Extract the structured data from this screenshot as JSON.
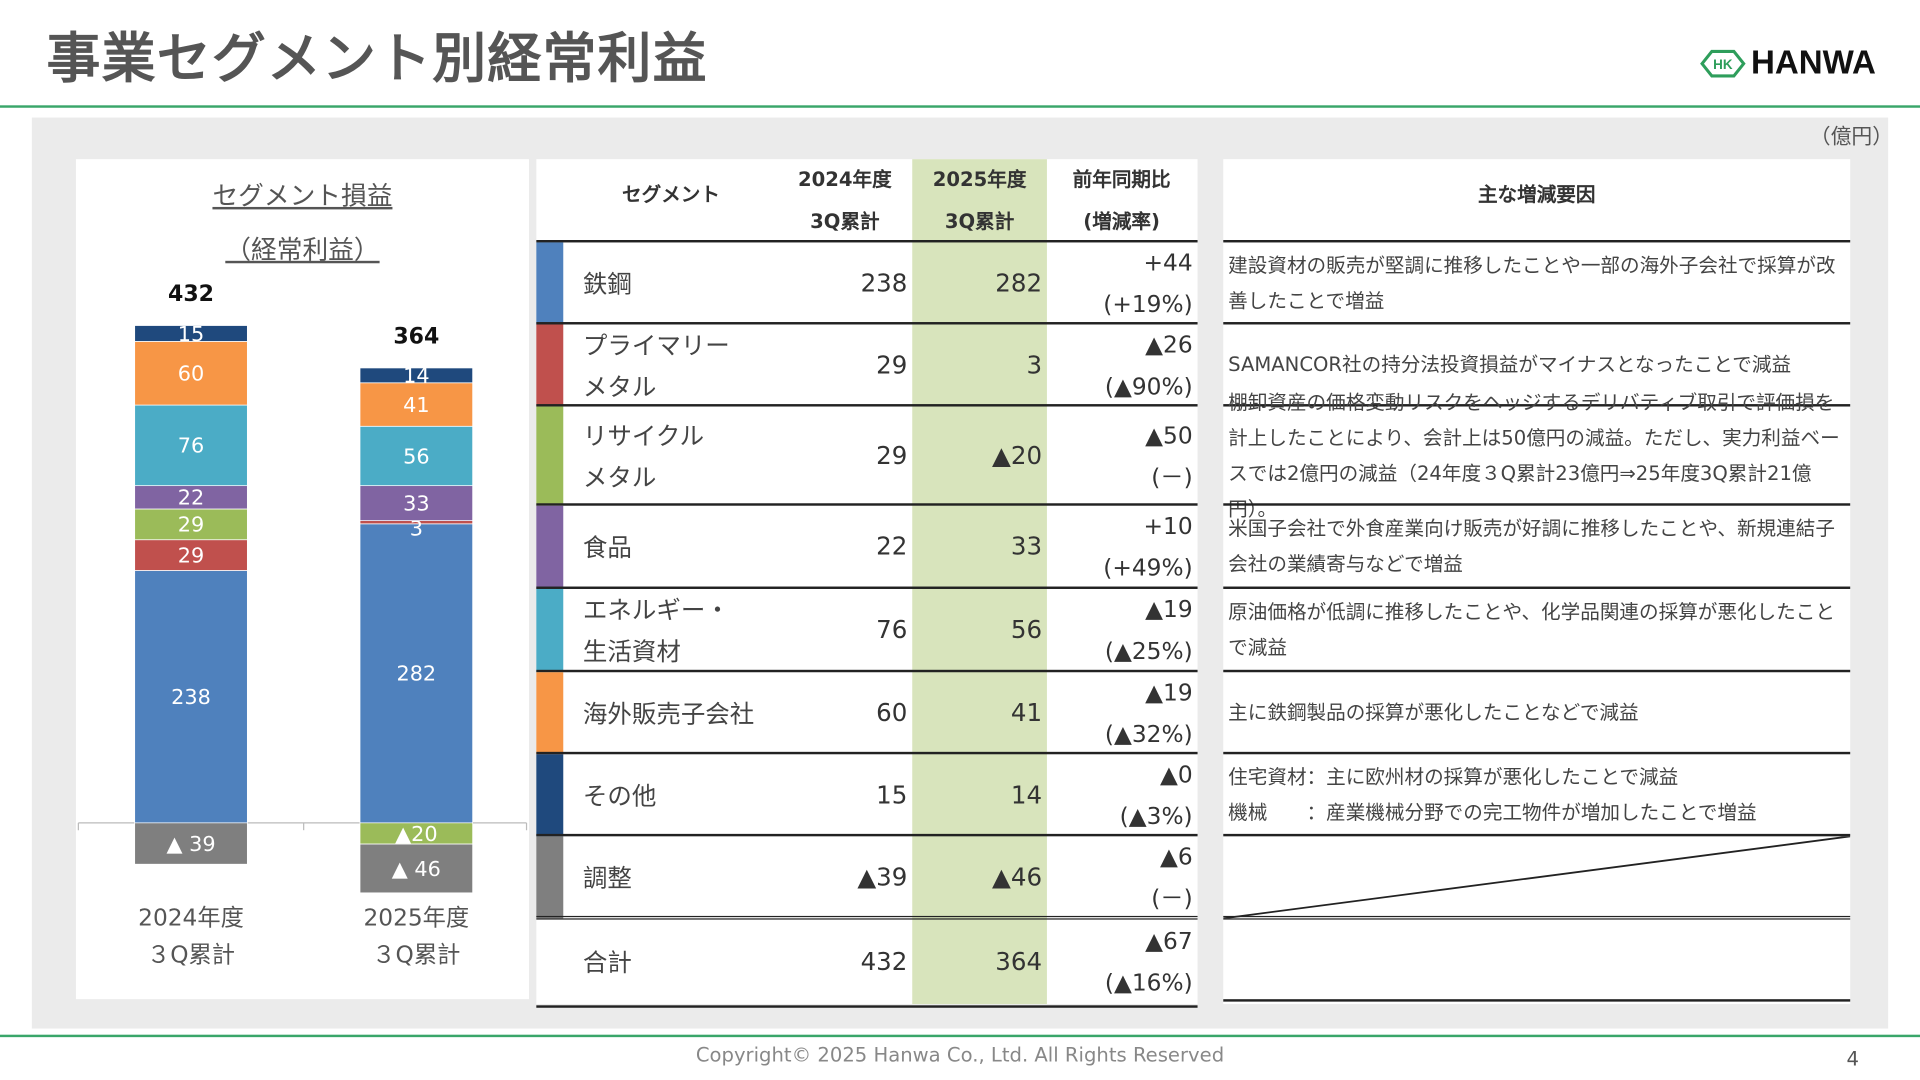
{
  "title": "事業セグメント別経常利益",
  "logo": {
    "mark": "HK",
    "name": "HANWA",
    "color": "#2e9e5b"
  },
  "unit": "（億円）",
  "chart_data": {
    "type": "bar",
    "stacked": true,
    "title": "セグメント損益",
    "subtitle": "（経常利益）",
    "categories": [
      "2024年度\n3Q累計",
      "2025年度\n3Q累計"
    ],
    "category_lines": [
      [
        "2024年度",
        "３Q累計"
      ],
      [
        "2025年度",
        "３Q累計"
      ]
    ],
    "totals": [
      432,
      364
    ],
    "total_labels": [
      "432",
      "364"
    ],
    "series": [
      {
        "key": "steel",
        "values": [
          238,
          282
        ],
        "labels": [
          "238",
          "282"
        ],
        "color": "#4f81bd"
      },
      {
        "key": "primary_metal",
        "values": [
          29,
          3
        ],
        "labels": [
          "29",
          "3"
        ],
        "color": "#c0504d"
      },
      {
        "key": "recycle_metal",
        "values": [
          29,
          -20
        ],
        "labels": [
          "29",
          "▲20"
        ],
        "color": "#9bbb59"
      },
      {
        "key": "food",
        "values": [
          22,
          33
        ],
        "labels": [
          "22",
          "33"
        ],
        "color": "#8064a2"
      },
      {
        "key": "energy",
        "values": [
          76,
          56
        ],
        "labels": [
          "76",
          "56"
        ],
        "color": "#4bacc6"
      },
      {
        "key": "overseas",
        "values": [
          60,
          41
        ],
        "labels": [
          "60",
          "41"
        ],
        "color": "#f79646"
      },
      {
        "key": "other",
        "values": [
          15,
          14
        ],
        "labels": [
          "15",
          "14"
        ],
        "color": "#1f497d"
      },
      {
        "key": "adjustment",
        "values": [
          -39,
          -46
        ],
        "labels": [
          "▲ 39",
          "▲ 46"
        ],
        "color": "#7f7f7f"
      }
    ]
  },
  "table": {
    "headers": {
      "segment": "セグメント",
      "y2024": [
        "2024年度",
        "3Q累計"
      ],
      "y2025": [
        "2025年度",
        "3Q累計"
      ],
      "yoy": [
        "前年同期比",
        "(増減率)"
      ],
      "reasons": "主な増減要因"
    },
    "rows": [
      {
        "name": [
          "鉄鋼"
        ],
        "color": "#4f81bd",
        "y2024": "238",
        "y2025": "282",
        "diff": "+44",
        "rate": "(+19%)",
        "reasons": [
          "建設資材の販売が堅調に推移したことや一部の海外子会社で採算が改善したことで増益"
        ]
      },
      {
        "name": [
          "プライマリー",
          "メタル"
        ],
        "color": "#c0504d",
        "y2024": "29",
        "y2025": "3",
        "diff": "▲26",
        "rate": "(▲90%)",
        "reasons": [
          "SAMANCOR社の持分法投資損益がマイナスとなったことで減益"
        ]
      },
      {
        "name": [
          "リサイクル",
          "メタル"
        ],
        "color": "#9bbb59",
        "y2024": "29",
        "y2025": "▲20",
        "diff": "▲50",
        "rate": "(－)",
        "reasons": [
          "棚卸資産の価格変動リスクをヘッジするデリバティブ取引で評価損を計上したことにより、会計上は50億円の減益。ただし、実力利益ベースでは2億円の減益（24年度３Q累計23億円⇒25年度3Q累計21億円）。"
        ]
      },
      {
        "name": [
          "食品"
        ],
        "color": "#8064a2",
        "y2024": "22",
        "y2025": "33",
        "diff": "+10",
        "rate": "(+49%)",
        "reasons": [
          "米国子会社で外食産業向け販売が好調に推移したことや、新規連結子会社の業績寄与などで増益"
        ]
      },
      {
        "name": [
          "エネルギー・",
          "生活資材"
        ],
        "color": "#4bacc6",
        "y2024": "76",
        "y2025": "56",
        "diff": "▲19",
        "rate": "(▲25%)",
        "reasons": [
          "原油価格が低調に推移したことや、化学品関連の採算が悪化したことで減益"
        ]
      },
      {
        "name": [
          "海外販売子会社"
        ],
        "color": "#f79646",
        "y2024": "60",
        "y2025": "41",
        "diff": "▲19",
        "rate": "(▲32%)",
        "reasons": [
          "主に鉄鋼製品の採算が悪化したことなどで減益"
        ]
      },
      {
        "name": [
          "その他"
        ],
        "color": "#1f497d",
        "y2024": "15",
        "y2025": "14",
        "diff": "▲0",
        "rate": "(▲3%)",
        "reasons": [
          "住宅資材：主に欧州材の採算が悪化したことで減益",
          "機械　　：産業機械分野での完工物件が増加したことで増益"
        ]
      },
      {
        "name": [
          "調整"
        ],
        "color": "#7f7f7f",
        "y2024": "▲39",
        "y2025": "▲46",
        "diff": "▲6",
        "rate": "(－)",
        "reasons": []
      },
      {
        "name": [
          "合計"
        ],
        "color": "",
        "y2024": "432",
        "y2025": "364",
        "diff": "▲67",
        "rate": "(▲16%)",
        "reasons": []
      }
    ]
  },
  "footer": {
    "copyright": "Copyright© 2025 Hanwa Co., Ltd. All Rights Reserved",
    "page": "4"
  }
}
